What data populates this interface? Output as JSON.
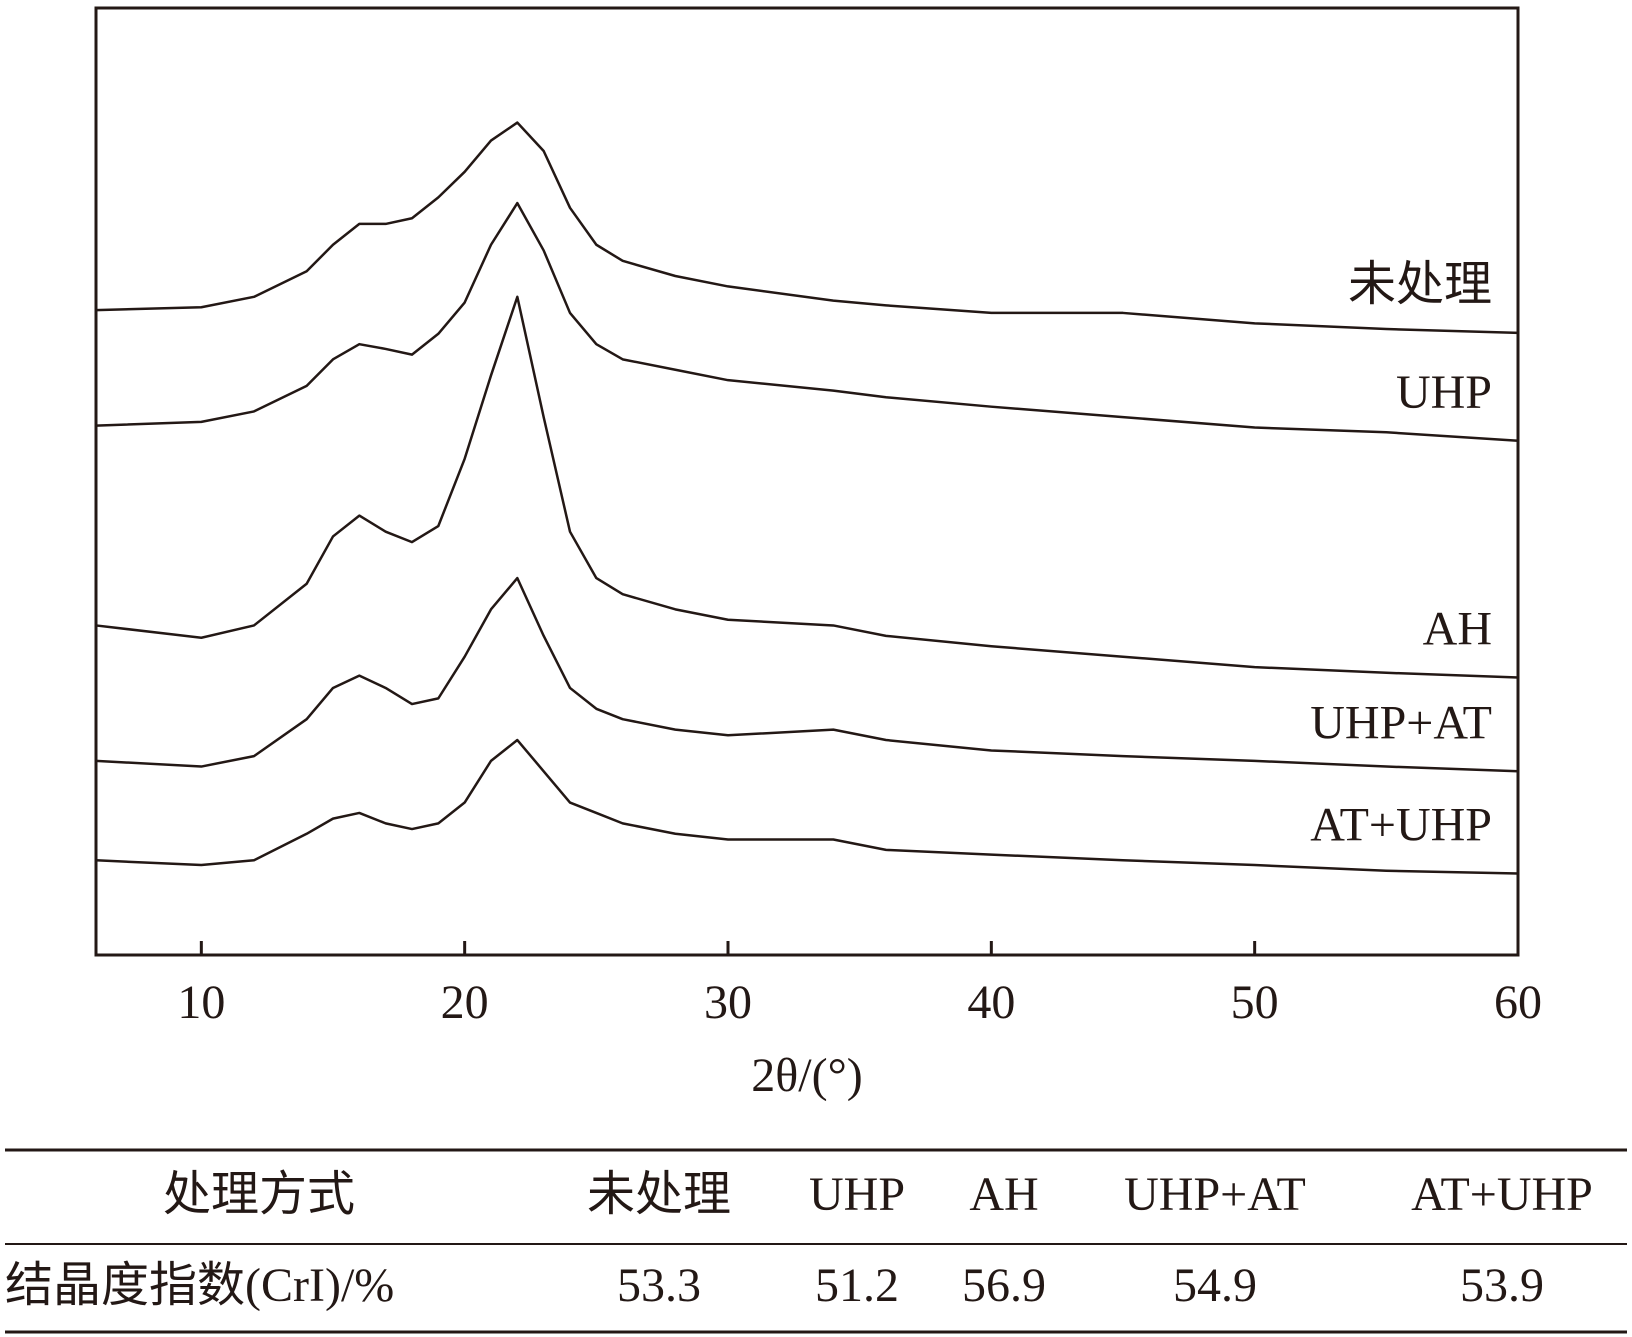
{
  "chart_data": {
    "type": "line",
    "x_label": "2θ/(°)",
    "x": [
      6,
      10,
      12,
      14,
      15,
      16,
      17,
      18,
      19,
      20,
      21,
      22,
      23,
      24,
      25,
      26,
      28,
      30,
      34,
      36,
      40,
      45,
      50,
      55,
      60
    ],
    "series": [
      {
        "name": "未处理",
        "color": "#231815",
        "values": [
          68.1,
          68.4,
          69.5,
          72.2,
          75.0,
          77.2,
          77.2,
          77.8,
          80.0,
          82.7,
          86.0,
          87.9,
          84.9,
          78.9,
          75.0,
          73.3,
          71.7,
          70.6,
          69.1,
          68.6,
          67.8,
          67.8,
          66.7,
          66.1,
          65.7
        ]
      },
      {
        "name": "UHP",
        "color": "#231815",
        "values": [
          55.9,
          56.3,
          57.4,
          60.1,
          62.9,
          64.5,
          64.0,
          63.4,
          65.6,
          68.9,
          75.0,
          79.4,
          74.4,
          67.8,
          64.5,
          62.9,
          61.8,
          60.7,
          59.6,
          58.9,
          57.9,
          56.8,
          55.7,
          55.2,
          54.3
        ]
      },
      {
        "name": "AH",
        "color": "#231815",
        "values": [
          34.8,
          33.5,
          34.8,
          39.2,
          44.2,
          46.4,
          44.7,
          43.6,
          45.3,
          52.4,
          61.2,
          69.5,
          56.8,
          44.7,
          39.8,
          38.1,
          36.5,
          35.4,
          34.8,
          33.7,
          32.6,
          31.5,
          30.4,
          29.8,
          29.3
        ]
      },
      {
        "name": "UHP+AT",
        "color": "#231815",
        "values": [
          20.5,
          19.9,
          21.0,
          24.9,
          28.2,
          29.5,
          28.2,
          26.5,
          27.1,
          31.5,
          36.5,
          39.8,
          33.7,
          28.2,
          26.0,
          24.9,
          23.8,
          23.2,
          23.8,
          22.7,
          21.6,
          21.0,
          20.5,
          19.9,
          19.4
        ]
      },
      {
        "name": "AT+UHP",
        "color": "#231815",
        "values": [
          10.0,
          9.5,
          10.0,
          12.8,
          14.4,
          15.0,
          13.9,
          13.3,
          13.9,
          16.1,
          20.5,
          22.7,
          19.4,
          16.1,
          15.0,
          13.9,
          12.8,
          12.2,
          12.2,
          11.1,
          10.6,
          10.0,
          9.5,
          8.9,
          8.6
        ]
      }
    ],
    "xlim": [
      6,
      60
    ],
    "xticks": [
      10,
      20,
      30,
      40,
      50,
      60
    ],
    "ylim": [
      0,
      100
    ]
  },
  "table": {
    "header": [
      "处理方式",
      "未处理",
      "UHP",
      "AH",
      "UHP+AT",
      "AT+UHP"
    ],
    "rows": [
      [
        "结晶度指数(CrI)/%",
        53.3,
        51.2,
        56.9,
        54.9,
        53.9
      ]
    ]
  }
}
